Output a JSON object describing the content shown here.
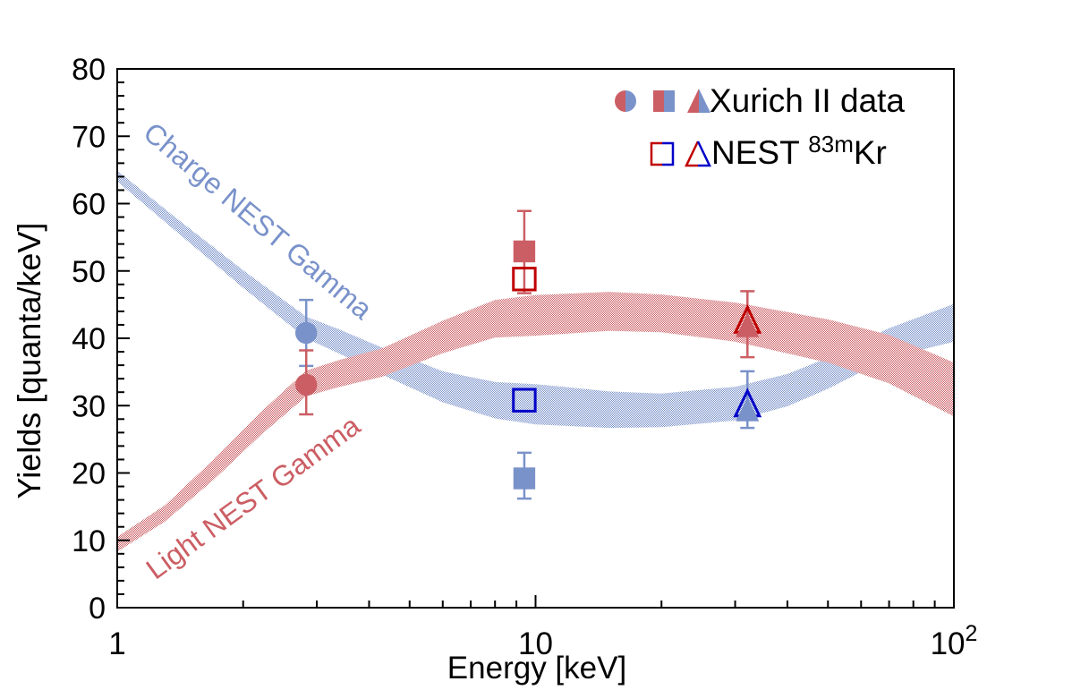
{
  "colors": {
    "blue": "#7a92ca",
    "red": "#cb5e64",
    "open_blue": "#0000c8",
    "open_red": "#c00000",
    "axis": "#000000",
    "background": "#ffffff"
  },
  "legend": {
    "xurich_label": "Xurich II data",
    "nest_prefix": "NEST ",
    "nest_sup": "83m",
    "nest_suffix": "Kr",
    "position": "top-right",
    "entries": [
      {
        "label": "Xurich II data",
        "markers": [
          "circle",
          "square",
          "triangle"
        ],
        "style": "half-filled-red-blue"
      },
      {
        "label": "NEST 83mKr",
        "markers": [
          "square",
          "triangle"
        ],
        "style": "open-half-red-blue"
      }
    ]
  },
  "annotations": {
    "charge": {
      "text": "Charge NEST Gamma",
      "color_key": "blue",
      "angle_deg": 40
    },
    "light": {
      "text": "Light NEST Gamma",
      "color_key": "red",
      "angle_deg": -36
    }
  },
  "chart_data": {
    "type": "scatter",
    "title": "",
    "xlabel": "Energy [keV]",
    "ylabel": "Yields [quanta/keV]",
    "x_scale": "log",
    "xlim": [
      1,
      100
    ],
    "ylim": [
      0,
      80
    ],
    "grid": false,
    "x_major_ticks": [
      1,
      10,
      100
    ],
    "x_major_tick_labels": [
      {
        "text": "1",
        "sup": ""
      },
      {
        "text": "10",
        "sup": ""
      },
      {
        "text": "10",
        "sup": "2"
      }
    ],
    "y_major_ticks": [
      0,
      10,
      20,
      30,
      40,
      50,
      60,
      70,
      80
    ],
    "y_minor_step": 2,
    "bands": [
      {
        "name": "Charge NEST Gamma",
        "color_key": "blue",
        "points_x_center_halfwidth": [
          [
            1,
            64.1,
            0.8
          ],
          [
            1.4,
            56.6,
            1.0
          ],
          [
            2,
            48.8,
            1.3
          ],
          [
            2.83,
            41.6,
            1.6
          ],
          [
            3.4,
            39.5,
            1.8
          ],
          [
            4.3,
            36.6,
            2.0
          ],
          [
            6,
            32.8,
            2.3
          ],
          [
            8,
            30.8,
            2.7
          ],
          [
            10,
            30.2,
            3.0
          ],
          [
            15,
            29.4,
            2.7
          ],
          [
            20,
            29.3,
            2.5
          ],
          [
            30,
            30.3,
            2.5
          ],
          [
            40,
            32.3,
            2.4
          ],
          [
            50,
            34.8,
            2.3
          ],
          [
            70,
            39.3,
            2.2
          ],
          [
            100,
            42.3,
            2.8
          ]
        ]
      },
      {
        "name": "Light NEST Gamma",
        "color_key": "red",
        "points_x_center_halfwidth": [
          [
            1,
            9.4,
            1.1
          ],
          [
            1.3,
            14.0,
            1.2
          ],
          [
            1.7,
            20.5,
            1.5
          ],
          [
            2.2,
            27.3,
            1.7
          ],
          [
            2.83,
            33.3,
            1.9
          ],
          [
            3.4,
            34.8,
            2.0
          ],
          [
            4.3,
            36.4,
            2.1
          ],
          [
            6,
            40.2,
            2.4
          ],
          [
            8,
            42.9,
            2.8
          ],
          [
            10,
            43.4,
            3.0
          ],
          [
            15,
            44.0,
            2.9
          ],
          [
            20,
            43.7,
            2.8
          ],
          [
            30,
            42.4,
            2.9
          ],
          [
            50,
            39.6,
            3.2
          ],
          [
            70,
            36.9,
            3.6
          ],
          [
            100,
            32.4,
            4.0
          ]
        ]
      }
    ],
    "series": [
      {
        "label": "Xurich II charge yield",
        "marker": "circle",
        "style": "filled",
        "color_key": "blue",
        "x": 2.83,
        "y": 40.8,
        "err_up": 4.9,
        "err_down": 4.9
      },
      {
        "label": "Xurich II light yield",
        "marker": "circle",
        "style": "filled",
        "color_key": "red",
        "x": 2.83,
        "y": 33.1,
        "err_up": 5.1,
        "err_down": 4.4
      },
      {
        "label": "Xurich II light yield",
        "marker": "square",
        "style": "filled",
        "color_key": "red",
        "x": 9.4,
        "y": 52.9,
        "err_up": 6.0,
        "err_down": 6.2
      },
      {
        "label": "NEST 83mKr light yield",
        "marker": "square",
        "style": "open",
        "color_key": "open_red",
        "x": 9.4,
        "y": 48.8
      },
      {
        "label": "NEST 83mKr charge yield",
        "marker": "square",
        "style": "open",
        "color_key": "open_blue",
        "x": 9.4,
        "y": 30.8
      },
      {
        "label": "Xurich II charge yield",
        "marker": "square",
        "style": "filled",
        "color_key": "blue",
        "x": 9.4,
        "y": 19.2,
        "err_up": 3.8,
        "err_down": 3.0
      },
      {
        "label": "NEST 83mKr light yield",
        "marker": "triangle",
        "style": "open",
        "color_key": "open_red",
        "x": 32.1,
        "y": 42.6
      },
      {
        "label": "Xurich II light yield",
        "marker": "triangle",
        "style": "filled",
        "color_key": "red",
        "x": 32.1,
        "y": 41.9,
        "err_up": 5.1,
        "err_down": 4.7
      },
      {
        "label": "NEST 83mKr charge yield",
        "marker": "triangle",
        "style": "open",
        "color_key": "open_blue",
        "x": 32.1,
        "y": 30.2
      },
      {
        "label": "Xurich II charge yield",
        "marker": "triangle",
        "style": "filled",
        "color_key": "blue",
        "x": 32.1,
        "y": 29.4,
        "err_up": 5.7,
        "err_down": 2.7
      }
    ]
  }
}
